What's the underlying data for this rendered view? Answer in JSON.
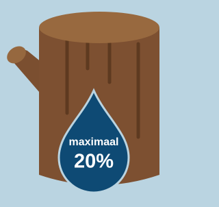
{
  "drop": {
    "label": "maximaal",
    "value": "20%"
  }
}
